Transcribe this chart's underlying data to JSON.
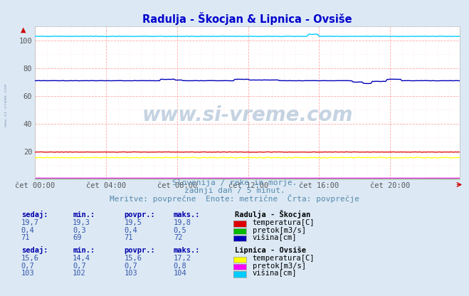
{
  "title": "Radulja - Škocjan & Lipnica - Ovsiše",
  "title_color": "#0000cc",
  "bg_color": "#dce9f5",
  "plot_bg_color": "#ffffff",
  "grid_color_major": "#ffaaaa",
  "grid_color_minor": "#ffdddd",
  "xlim": [
    0,
    287
  ],
  "ylim": [
    0,
    110
  ],
  "yticks": [
    20,
    40,
    60,
    80,
    100
  ],
  "xtick_labels": [
    "čet 00:00",
    "čet 04:00",
    "čet 08:00",
    "čet 12:00",
    "čet 16:00",
    "čet 20:00"
  ],
  "xtick_positions": [
    0,
    48,
    96,
    144,
    192,
    240
  ],
  "subtitle1": "Slovenija / reke in morje.",
  "subtitle2": "zadnji dan / 5 minut.",
  "subtitle3": "Meritve: povprečne  Enote: metrične  Črta: povprečje",
  "watermark": "www.si-vreme.com",
  "radulja_temp_color": "#dd0000",
  "radulja_pretok_color": "#00bb00",
  "radulja_visina_color": "#0000bb",
  "lipnica_temp_color": "#ffff00",
  "lipnica_pretok_color": "#ff00ff",
  "lipnica_visina_color": "#00ccff",
  "table_text_color": "#3355aa",
  "table_header_color": "#0000aa",
  "table_title_color": "#000000",
  "subtitle_color": "#5588aa"
}
